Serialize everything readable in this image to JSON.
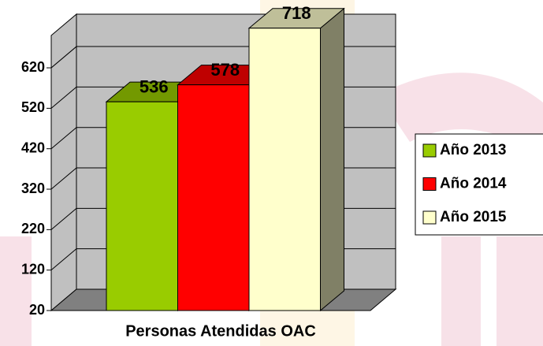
{
  "chart_data": {
    "type": "bar3d",
    "categories": [
      "Personas Atendidas OAC"
    ],
    "series": [
      {
        "name": "Año 2013",
        "color": "#99cc00",
        "values": [
          536
        ]
      },
      {
        "name": "Año 2014",
        "color": "#ff0000",
        "values": [
          578
        ]
      },
      {
        "name": "Año 2015",
        "color": "#ffffcc",
        "values": [
          718
        ]
      }
    ],
    "ylim": [
      20,
      700
    ],
    "yticks": [
      20,
      120,
      220,
      320,
      420,
      520,
      620
    ],
    "grid": true,
    "legend": "right",
    "wall_color": "#c0c0c0",
    "floor_color": "#808080"
  }
}
